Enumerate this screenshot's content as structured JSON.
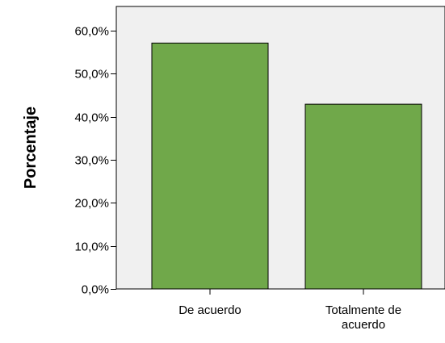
{
  "chart_data": {
    "type": "bar",
    "title": "",
    "xlabel": "",
    "ylabel": "Porcentaje",
    "categories": [
      {
        "lines": [
          "De acuerdo"
        ]
      },
      {
        "lines": [
          "Totalmente de",
          "acuerdo"
        ]
      }
    ],
    "values": [
      57.1,
      42.9
    ],
    "ylim": [
      0,
      65.6
    ],
    "yticks": [
      0,
      10,
      20,
      30,
      40,
      50,
      60
    ],
    "ytick_labels": [
      "0,0%",
      "10,0%",
      "20,0%",
      "30,0%",
      "40,0%",
      "50,0%",
      "60,0%"
    ],
    "grid": false,
    "legend": "none",
    "colors": {
      "bar_fill": "#70a84a",
      "bar_stroke": "#000000",
      "plot_bg": "#f0f0f0",
      "axis": "#000000"
    }
  }
}
